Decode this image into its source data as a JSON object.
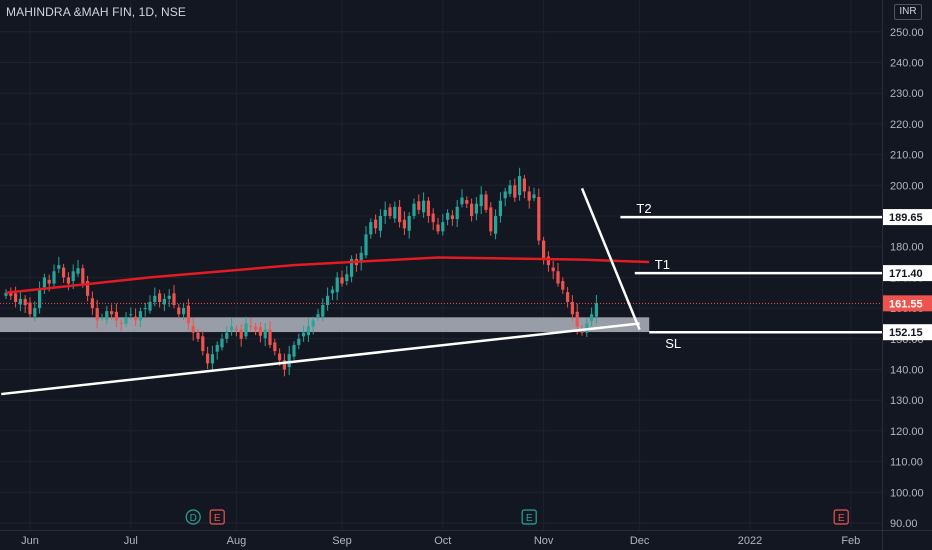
{
  "header": {
    "title": "MAHINDRA &MAH FIN, 1D, NSE",
    "currency": "INR"
  },
  "colors": {
    "background": "#131722",
    "grid": "#1e222d",
    "text": "#b2b5be",
    "up": "#26a69a",
    "down": "#ef5350",
    "ma": "#e31b23",
    "lines": "#ffffff",
    "zone": "#b2b5be"
  },
  "chart_data": {
    "type": "candlestick",
    "title": "MAHINDRA &MAH FIN, 1D, NSE",
    "ylim": [
      88,
      255
    ],
    "y_ticks": [
      90,
      100,
      110,
      120,
      130,
      140,
      150,
      160,
      170,
      180,
      190,
      200,
      210,
      220,
      230,
      240,
      250
    ],
    "x_ticks": [
      {
        "label": "Jun",
        "i": 5
      },
      {
        "label": "Jul",
        "i": 26
      },
      {
        "label": "Aug",
        "i": 48
      },
      {
        "label": "Sep",
        "i": 70
      },
      {
        "label": "Oct",
        "i": 91
      },
      {
        "label": "Nov",
        "i": 112
      },
      {
        "label": "Dec",
        "i": 132
      },
      {
        "label": "2022",
        "i": 155
      },
      {
        "label": "Feb",
        "i": 176
      }
    ],
    "closes": [
      165,
      164,
      162,
      163,
      161,
      158,
      160,
      166,
      170,
      168,
      172,
      174,
      170,
      168,
      172,
      173,
      168,
      164,
      160,
      156,
      157,
      159,
      158,
      156,
      155,
      157,
      158,
      156,
      159,
      160,
      162,
      164,
      162,
      163,
      164,
      161,
      158,
      160,
      155,
      152,
      150,
      146,
      142,
      145,
      148,
      150,
      152,
      154,
      153,
      150,
      155,
      154,
      153,
      151,
      153,
      148,
      146,
      143,
      140,
      145,
      148,
      150,
      152,
      154,
      156,
      158,
      161,
      164,
      166,
      170,
      168,
      171,
      176,
      174,
      178,
      184,
      188,
      186,
      190,
      192,
      190,
      193,
      188,
      186,
      190,
      194,
      192,
      195,
      190,
      188,
      185,
      188,
      191,
      189,
      193,
      196,
      194,
      190,
      194,
      197,
      192,
      185,
      190,
      195,
      198,
      200,
      196,
      203,
      198,
      195,
      197,
      182,
      176,
      174,
      172,
      168,
      166,
      162,
      158,
      154,
      152,
      155,
      158,
      161.55
    ],
    "ma": [
      [
        0,
        165
      ],
      [
        30,
        170
      ],
      [
        60,
        174
      ],
      [
        90,
        176.5
      ],
      [
        120,
        175.8
      ],
      [
        134,
        175
      ]
    ],
    "candle_spacing": 4.8,
    "price_labels": [
      {
        "label": "189.65",
        "value": 189.65,
        "style": "white"
      },
      {
        "label": "171.40",
        "value": 171.4,
        "style": "white"
      },
      {
        "label": "161.55",
        "value": 161.55,
        "style": "red"
      },
      {
        "label": "152.15",
        "value": 152.15,
        "style": "white"
      }
    ],
    "levels": [
      {
        "name": "T2",
        "value": 189.65
      },
      {
        "name": "T1",
        "value": 171.4
      },
      {
        "name": "SL",
        "value": 152.15
      }
    ],
    "zone": [
      152.2,
      157
    ],
    "trendline": [
      [
        -1,
        132
      ],
      [
        132,
        155
      ]
    ],
    "drop_line": [
      [
        120,
        199
      ],
      [
        132,
        153
      ]
    ],
    "event_markers": [
      {
        "label": "D",
        "i": 39,
        "color": "#26a69a"
      },
      {
        "label": "E",
        "i": 44,
        "color": "#ef5350"
      },
      {
        "label": "E",
        "i": 109,
        "color": "#26a69a"
      },
      {
        "label": "E",
        "i": 174,
        "color": "#ef5350"
      }
    ]
  }
}
